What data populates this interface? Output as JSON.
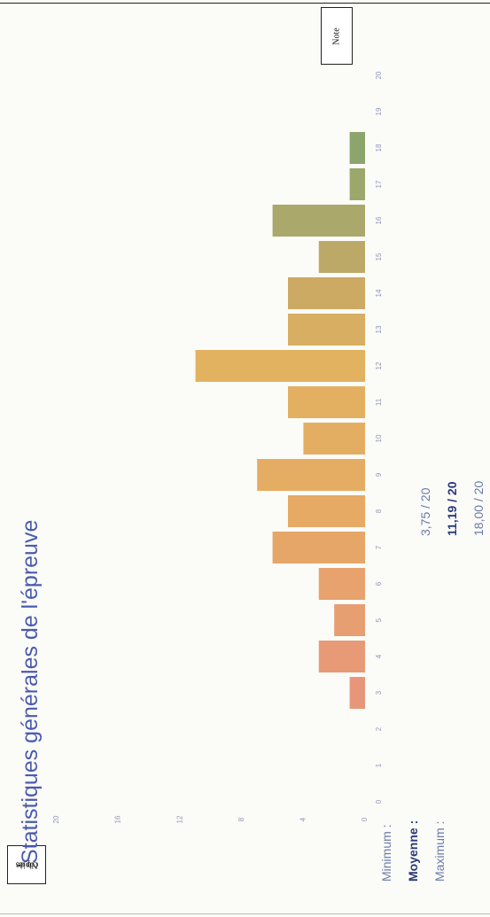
{
  "page_title": "Statistiques générales de l'épreuve",
  "annotations": {
    "x_axis_label": "Note",
    "y_axis_label_line1": "Nb de",
    "y_axis_label_line2": "copies"
  },
  "stats": [
    {
      "label": "Minimum :",
      "value": "3,75 / 20",
      "bold": false
    },
    {
      "label": "Moyenne :",
      "value": "11,19 / 20",
      "bold": true
    },
    {
      "label": "Maximum :",
      "value": "18,00 / 20",
      "bold": false
    }
  ],
  "chart_data": {
    "type": "bar",
    "title": "Statistiques générales de l'épreuve",
    "xlabel": "Note",
    "ylabel": "Nb de copies",
    "categories": [
      "0",
      "1",
      "2",
      "3",
      "4",
      "5",
      "6",
      "7",
      "8",
      "9",
      "10",
      "11",
      "12",
      "13",
      "14",
      "15",
      "16",
      "17",
      "18",
      "19",
      "20"
    ],
    "values": [
      0,
      0,
      0,
      1,
      3,
      2,
      3,
      6,
      5,
      7,
      4,
      5,
      11,
      5,
      5,
      3,
      6,
      1,
      1,
      0,
      0
    ],
    "yticks": [
      "0",
      "4",
      "8",
      "12",
      "16",
      "20"
    ],
    "ylim": [
      0,
      20
    ],
    "orientation": "rotated 90° counter-clockwise",
    "colors": {
      "low": "#e8967a",
      "mid": "#e6b266",
      "high": "#a7ab6b",
      "top": "#8fa66c"
    },
    "grid": false,
    "legend": "none"
  }
}
